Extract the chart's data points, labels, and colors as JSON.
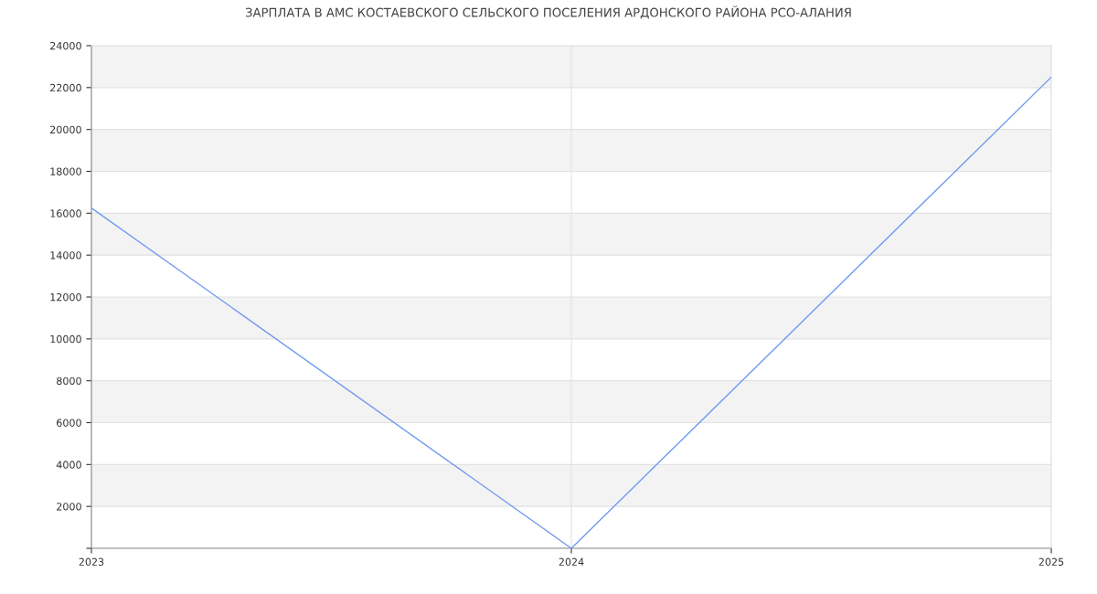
{
  "chart_data": {
    "type": "line",
    "title": "ЗАРПЛАТА В АМС КОСТАЕВСКОГО СЕЛЬСКОГО ПОСЕЛЕНИЯ АРДОНСКОГО РАЙОНА РСО-АЛАНИЯ",
    "x": [
      2023,
      2024,
      2025
    ],
    "series": [
      {
        "color": "#6f9af0",
        "values": [
          16250,
          0,
          22500
        ]
      }
    ],
    "xlim": [
      2023,
      2025
    ],
    "xticks": [
      2023,
      2024,
      2025
    ],
    "ylim": [
      0,
      24000
    ],
    "yticks": [
      {
        "value": 0,
        "label": null
      },
      2000,
      4000,
      6000,
      8000,
      10000,
      12000,
      14000,
      16000,
      18000,
      20000,
      22000,
      24000
    ],
    "bands": [
      {
        "axis": "y",
        "from": 2000,
        "to": 4000,
        "color": "#f3f3f3"
      },
      {
        "axis": "y",
        "from": 6000,
        "to": 8000,
        "color": "#f3f3f3"
      },
      {
        "axis": "y",
        "from": 10000,
        "to": 12000,
        "color": "#f3f3f3"
      },
      {
        "axis": "y",
        "from": 14000,
        "to": 16000,
        "color": "#f3f3f3"
      },
      {
        "axis": "y",
        "from": 18000,
        "to": 20000,
        "color": "#f3f3f3"
      },
      {
        "axis": "y",
        "from": 22000,
        "to": 24000,
        "color": "#f3f3f3"
      }
    ],
    "grid": true,
    "legend": false,
    "marker": "none",
    "line_style": "solid"
  }
}
